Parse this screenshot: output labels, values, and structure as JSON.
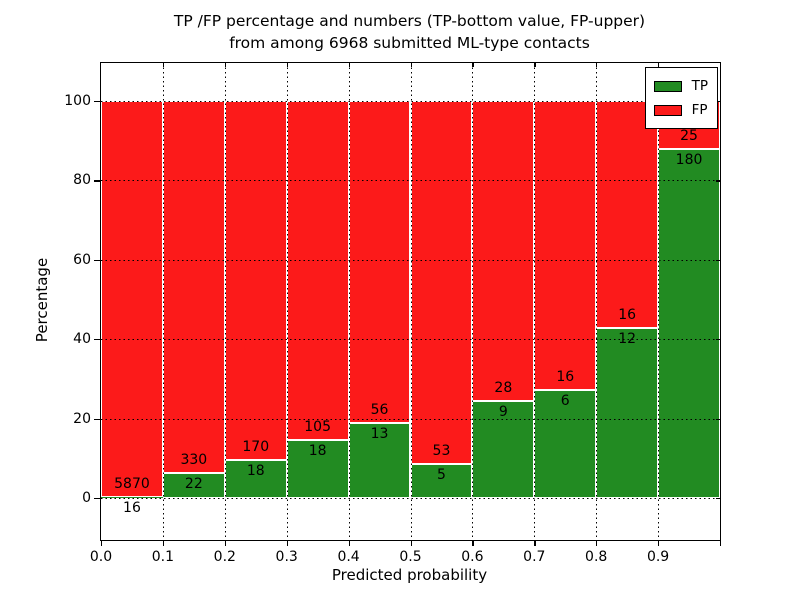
{
  "figure": {
    "title_line1": "TP /FP percentage and numbers (TP-bottom value, FP-upper)",
    "title_line2": "from among 6968 submitted ML-type contacts",
    "xlabel": "Predicted probability",
    "ylabel": "Percentage"
  },
  "legend": {
    "items": [
      {
        "label": "TP",
        "color": "#228b22"
      },
      {
        "label": "FP",
        "color": "#fc1a1a"
      }
    ]
  },
  "chart_data": {
    "type": "bar",
    "stacked": true,
    "normalized_to_percent": true,
    "title": "TP /FP percentage and numbers (TP-bottom value, FP-upper) from among 6968 submitted ML-type contacts",
    "xlabel": "Predicted probability",
    "ylabel": "Percentage",
    "total_contacts": 6968,
    "bin_width": 0.1,
    "bin_starts": [
      0.0,
      0.1,
      0.2,
      0.3,
      0.4,
      0.5,
      0.6,
      0.7,
      0.8,
      0.9
    ],
    "series": [
      {
        "name": "TP",
        "color": "#228b22",
        "counts": [
          16,
          22,
          18,
          18,
          13,
          5,
          9,
          6,
          12,
          180
        ]
      },
      {
        "name": "FP",
        "color": "#fc1a1a",
        "counts": [
          5870,
          330,
          170,
          105,
          56,
          53,
          28,
          16,
          16,
          25
        ]
      }
    ],
    "annotation_rule": "FP count printed above TP/FP boundary, TP count printed below boundary",
    "x_ticks": [
      "0.0",
      "0.1",
      "0.2",
      "0.3",
      "0.4",
      "0.5",
      "0.6",
      "0.7",
      "0.8",
      "0.9"
    ],
    "y_ticks": [
      "0",
      "20",
      "40",
      "60",
      "80",
      "100"
    ],
    "xlim": [
      0.0,
      1.0
    ],
    "ylim": [
      -10.6,
      109.6
    ],
    "grid": "dotted black, drawn above bars",
    "bar_edge_color": "#ffffff",
    "legend_position": "upper right"
  }
}
